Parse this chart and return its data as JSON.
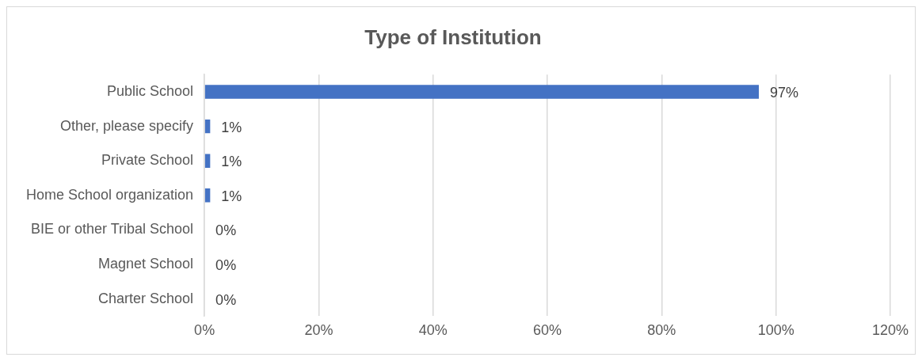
{
  "chart_data": {
    "type": "bar",
    "title": "Type of Institution",
    "orientation": "horizontal",
    "categories": [
      "Public School",
      "Other, please specify",
      "Private School",
      "Home School organization",
      "BIE or other Tribal School",
      "Magnet School",
      "Charter School"
    ],
    "values": [
      97,
      1,
      1,
      1,
      0,
      0,
      0
    ],
    "value_labels": [
      "97%",
      "1%",
      "1%",
      "1%",
      "0%",
      "0%",
      "0%"
    ],
    "color": "#4472c4",
    "xlim": [
      0,
      120
    ],
    "xticks": [
      {
        "value": 0,
        "label": "0%"
      },
      {
        "value": 20,
        "label": "20%"
      },
      {
        "value": 40,
        "label": "40%"
      },
      {
        "value": 60,
        "label": "60%"
      },
      {
        "value": 80,
        "label": "80%"
      },
      {
        "value": 100,
        "label": "100%"
      },
      {
        "value": 120,
        "label": "120%"
      }
    ],
    "grid": "x",
    "legend": false
  }
}
